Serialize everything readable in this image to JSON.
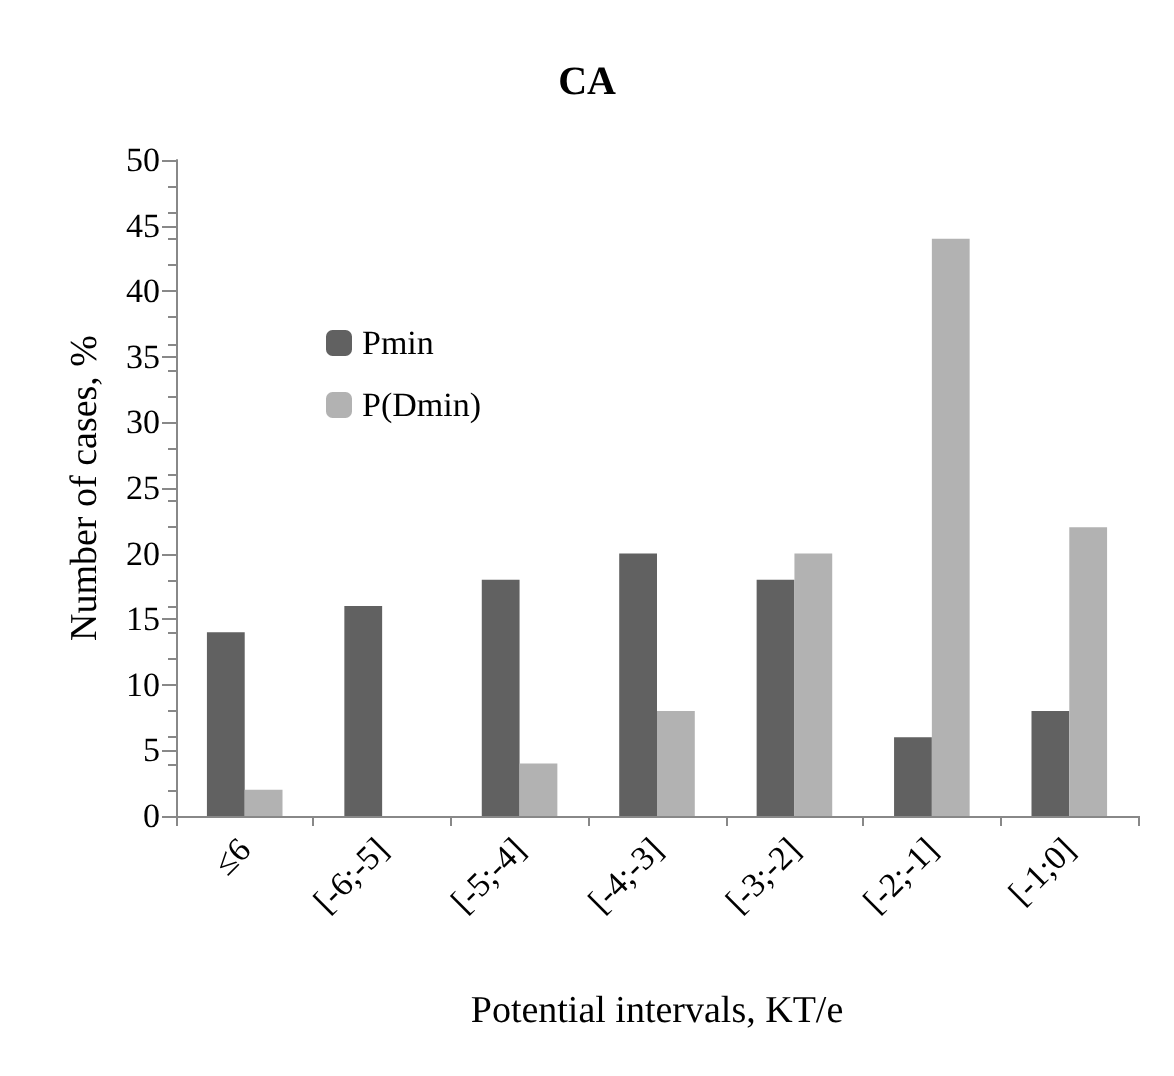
{
  "chart_data": {
    "type": "bar",
    "title": "CA",
    "xlabel": "Potential intervals, KT/e",
    "ylabel": "Number of cases, %",
    "categories": [
      "≤6",
      "[-6;-5]",
      "[-5;-4]",
      "[-4;-3]",
      "[-3;-2]",
      "[-2;-1]",
      "[-1;0]"
    ],
    "series": [
      {
        "name": "Pmin",
        "color": "#616161",
        "values": [
          14,
          16,
          18,
          20,
          18,
          6,
          8
        ]
      },
      {
        "name": "P(Dmin)",
        "color": "#b2b2b2",
        "values": [
          2,
          null,
          4,
          8,
          20,
          44,
          22
        ]
      }
    ],
    "ylim": [
      0,
      50
    ],
    "yticks": [
      0,
      5,
      10,
      15,
      20,
      25,
      30,
      35,
      40,
      45,
      50
    ],
    "grid": false,
    "legend": "top left"
  }
}
